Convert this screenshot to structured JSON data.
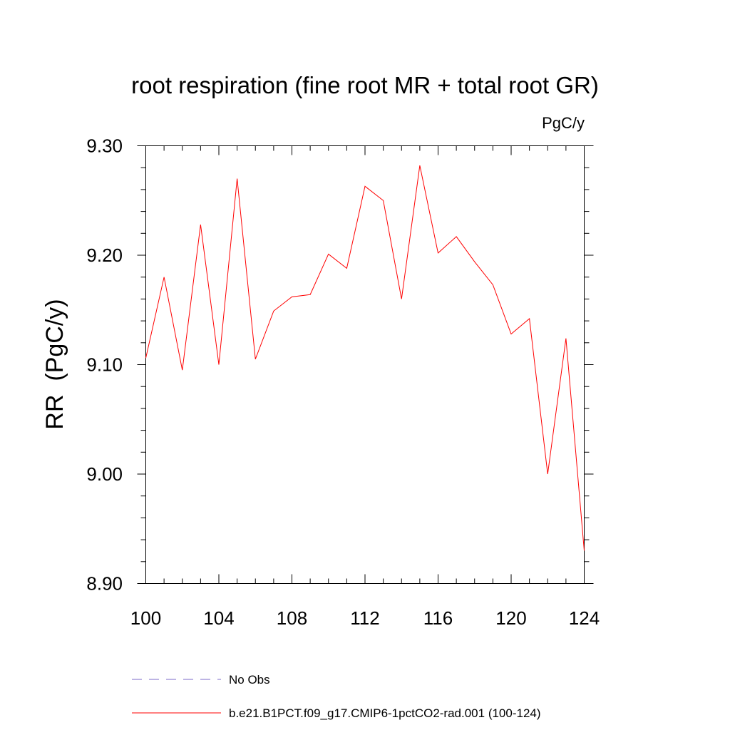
{
  "chart_data": {
    "type": "line",
    "title": "root respiration (fine root MR + total root GR)",
    "units_label": "PgC/y",
    "xlabel": "",
    "ylabel": "RR  (PgC/y)",
    "xlim": [
      100,
      124
    ],
    "ylim": [
      8.9,
      9.3
    ],
    "x_ticks": [
      100,
      104,
      108,
      112,
      116,
      120,
      124
    ],
    "x_tick_labels": [
      "100",
      "104",
      "108",
      "112",
      "116",
      "120",
      "124"
    ],
    "y_ticks": [
      8.9,
      9.0,
      9.1,
      9.2,
      9.3
    ],
    "y_tick_labels": [
      "8.90",
      "9.00",
      "9.10",
      "9.20",
      "9.30"
    ],
    "x_minor_step": 1,
    "y_minor_step": 0.02,
    "grid": false,
    "legend_position": "bottom",
    "series": [
      {
        "name": "No Obs",
        "color": "#7b68c8",
        "style": "dashed",
        "x": [],
        "y": []
      },
      {
        "name": "b.e21.B1PCT.f09_g17.CMIP6-1pctCO2-rad.001 (100-124)",
        "color": "#ff0000",
        "style": "solid",
        "x": [
          100,
          101,
          102,
          103,
          104,
          105,
          106,
          107,
          108,
          109,
          110,
          111,
          112,
          113,
          114,
          115,
          116,
          117,
          118,
          119,
          120,
          121,
          122,
          123,
          124
        ],
        "y": [
          9.106,
          9.18,
          9.095,
          9.228,
          9.1,
          9.27,
          9.105,
          9.149,
          9.162,
          9.164,
          9.201,
          9.188,
          9.263,
          9.25,
          9.16,
          9.282,
          9.202,
          9.217,
          9.194,
          9.173,
          9.128,
          9.142,
          9.0,
          9.124,
          8.93
        ]
      }
    ]
  }
}
